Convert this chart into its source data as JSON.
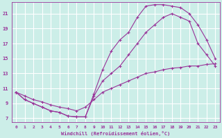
{
  "xlabel": "Windchill (Refroidissement éolien,°C)",
  "bg_color": "#cceee8",
  "grid_color": "#ffffff",
  "line_color": "#993399",
  "xlim": [
    -0.5,
    23.5
  ],
  "ylim": [
    6.5,
    22.5
  ],
  "xticks": [
    0,
    1,
    2,
    3,
    4,
    5,
    6,
    7,
    8,
    9,
    10,
    11,
    12,
    13,
    14,
    15,
    16,
    17,
    18,
    19,
    20,
    21,
    22,
    23
  ],
  "yticks": [
    7,
    9,
    11,
    13,
    15,
    17,
    19,
    21
  ],
  "series": [
    {
      "x": [
        0,
        1,
        2,
        3,
        4,
        5,
        6,
        7,
        8,
        9,
        10,
        11,
        12,
        13,
        14,
        15,
        16,
        17,
        18,
        19,
        20,
        21,
        22,
        23
      ],
      "y": [
        10.5,
        9.5,
        9.0,
        8.5,
        8.0,
        7.8,
        7.3,
        7.2,
        7.2,
        10.3,
        13.5,
        16.0,
        17.5,
        18.5,
        20.5,
        22.0,
        22.2,
        22.2,
        22.0,
        21.8,
        21.0,
        19.5,
        17.5,
        15.0
      ]
    },
    {
      "x": [
        0,
        1,
        2,
        3,
        4,
        5,
        6,
        7,
        8,
        9,
        10,
        11,
        12,
        13,
        14,
        15,
        16,
        17,
        18,
        19,
        20,
        21,
        22,
        23
      ],
      "y": [
        10.5,
        9.5,
        9.0,
        8.5,
        8.0,
        7.8,
        7.3,
        7.2,
        7.2,
        10.0,
        12.0,
        13.0,
        14.0,
        15.5,
        17.0,
        18.5,
        19.5,
        20.5,
        21.0,
        20.5,
        20.0,
        17.0,
        15.5,
        14.0
      ]
    },
    {
      "x": [
        0,
        1,
        2,
        3,
        4,
        5,
        6,
        7,
        8,
        9,
        10,
        11,
        12,
        13,
        14,
        15,
        16,
        17,
        18,
        19,
        20,
        21,
        22,
        23
      ],
      "y": [
        10.5,
        10.0,
        9.5,
        9.2,
        8.8,
        8.5,
        8.3,
        8.0,
        8.5,
        9.5,
        10.5,
        11.0,
        11.5,
        12.0,
        12.5,
        13.0,
        13.2,
        13.5,
        13.7,
        13.8,
        14.0,
        14.0,
        14.2,
        14.3
      ]
    }
  ]
}
